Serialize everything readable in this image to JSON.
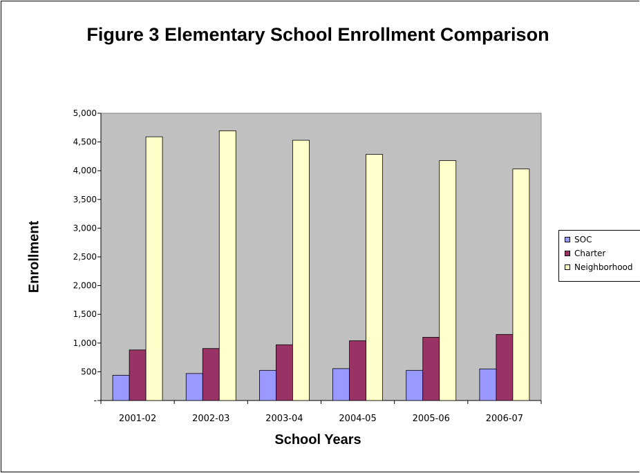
{
  "chart_data": {
    "type": "bar",
    "title": "Figure 3 Elementary School Enrollment Comparison",
    "xlabel": "School Years",
    "ylabel": "Enrollment",
    "categories": [
      "2001-02",
      "2002-03",
      "2003-04",
      "2004-05",
      "2005-06",
      "2006-07"
    ],
    "series": [
      {
        "name": "SOC",
        "values": [
          440,
          470,
          525,
          555,
          525,
          550
        ],
        "color": "#9999ff"
      },
      {
        "name": "Charter",
        "values": [
          880,
          905,
          970,
          1040,
          1100,
          1150
        ],
        "color": "#993366"
      },
      {
        "name": "Neighborhood",
        "values": [
          4590,
          4695,
          4530,
          4285,
          4175,
          4030
        ],
        "color": "#ffffcc"
      }
    ],
    "ylim": [
      0,
      5000
    ],
    "yticks": [
      0,
      500,
      1000,
      1500,
      2000,
      2500,
      3000,
      3500,
      4000,
      4500,
      5000
    ],
    "ytick_labels": [
      "-",
      "500",
      "1,000",
      "1,500",
      "2,000",
      "2,500",
      "3,000",
      "3,500",
      "4,000",
      "4,500",
      "5,000"
    ],
    "plot_background": "#c0c0c0",
    "grid": false,
    "legend_position": "right"
  }
}
